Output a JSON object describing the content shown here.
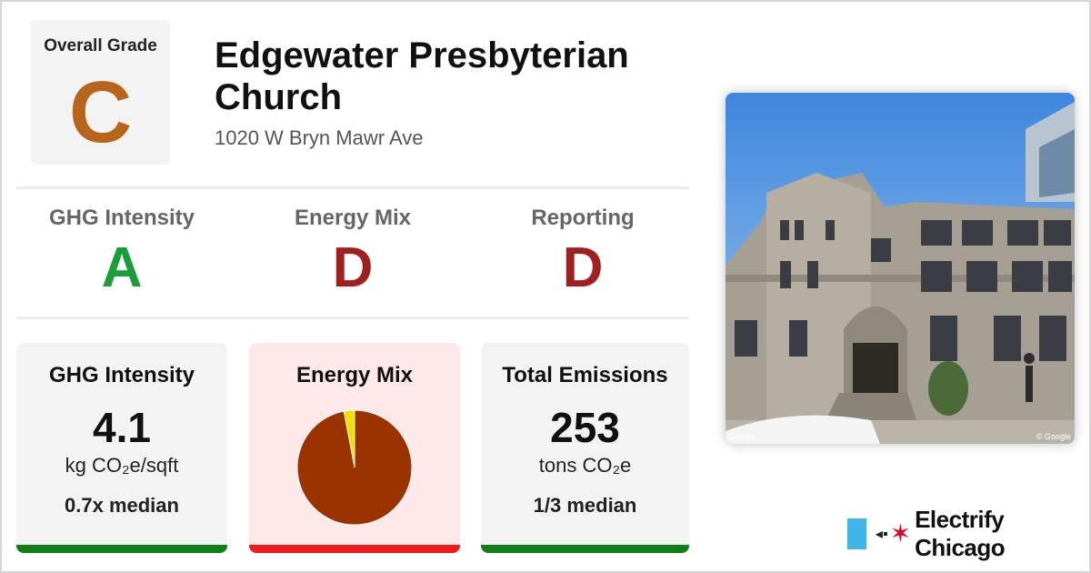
{
  "overall": {
    "label": "Overall Grade",
    "grade": "C",
    "color": "#b8651b"
  },
  "building": {
    "name": "Edgewater Presbyterian Church",
    "address": "1020 W Bryn Mawr Ave"
  },
  "sub_grades": [
    {
      "label": "GHG Intensity",
      "grade": "A",
      "color": "#1a9e3a"
    },
    {
      "label": "Energy Mix",
      "grade": "D",
      "color": "#a31f1f"
    },
    {
      "label": "Reporting",
      "grade": "D",
      "color": "#a31f1f"
    }
  ],
  "cards": {
    "ghg": {
      "label": "GHG Intensity",
      "value": "4.1",
      "unit": "kg CO₂e/sqft",
      "median": "0.7x median",
      "bar_color": "#0f7f16",
      "bg": "#f3f3f3"
    },
    "mix": {
      "label": "Energy Mix",
      "bar_color": "#ee1c1c",
      "bg": "#fde8ea",
      "pie": [
        {
          "share": 0.97,
          "color": "#9b3300"
        },
        {
          "share": 0.03,
          "color": "#f0e000"
        }
      ]
    },
    "emissions": {
      "label": "Total Emissions",
      "value": "253",
      "unit": "tons CO₂e",
      "median": "1/3 median",
      "bar_color": "#0f7f16",
      "bg": "#f3f3f3"
    }
  },
  "photo": {
    "credit_left": "Google",
    "credit_right": "© Google"
  },
  "brand": {
    "name": "Electrify Chicago",
    "flag_color": "#41b6e6",
    "star_color": "#e4002b"
  }
}
